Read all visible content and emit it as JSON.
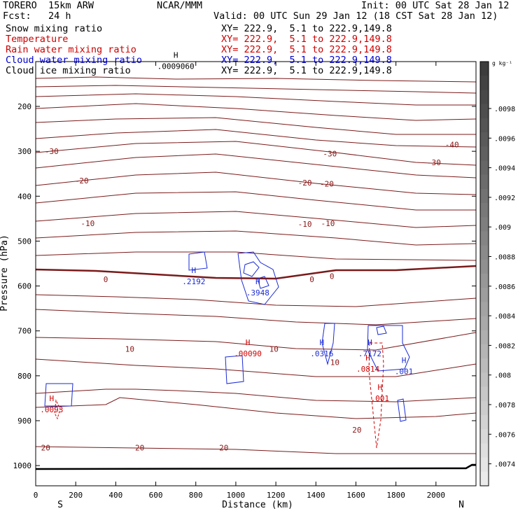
{
  "header": {
    "title": "TORERO  15km ARW",
    "forecast": "Fcst:   24 h",
    "source": "NCAR/MMM",
    "init": "Init: 00 UTC Sat 28 Jan 12",
    "valid": "Valid: 00 UTC Sun 29 Jan 12 (18 CST Sat 28 Jan 12)"
  },
  "fields": [
    {
      "label": "Snow mixing ratio",
      "xy": "XY= 222.9,  5.1 to 222.9,149.8",
      "color": "#000000"
    },
    {
      "label": "Temperature",
      "xy": "XY= 222.9,  5.1 to 222.9,149.8",
      "color": "#cc0000"
    },
    {
      "label": "Rain water mixing ratio",
      "xy": "XY= 222.9,  5.1 to 222.9,149.8",
      "color": "#cc0000"
    },
    {
      "label": "Cloud water mixing ratio",
      "xy": "XY= 222.9,  5.1 to 222.9,149.8",
      "color": "#0000cc"
    },
    {
      "label": "Cloud ice mixing ratio",
      "xy": "XY= 222.9,  5.1 to 222.9,149.8",
      "color": "#000000"
    }
  ],
  "chart_data": {
    "type": "contour",
    "xlabel": "Distance (km)",
    "ylabel": "Pressure (hPa)",
    "xlim": [
      0,
      2200
    ],
    "ylim": [
      1050,
      100
    ],
    "x_ticks": [
      "0",
      "200",
      "400",
      "600",
      "800",
      "1000",
      "1200",
      "1400",
      "1600",
      "1800",
      "2000"
    ],
    "y_ticks": [
      "200",
      "300",
      "400",
      "500",
      "600",
      "700",
      "800",
      "900",
      "1000"
    ],
    "end_labels": {
      "left": "S",
      "right": "N"
    },
    "colorbar": {
      "unit": "g kg⁻¹",
      "ticks": [
        ".0098",
        ".0096",
        ".0094",
        ".0092",
        ".009",
        ".0088",
        ".0086",
        ".0084",
        ".0082",
        ".008",
        ".0078",
        ".0076",
        ".0074"
      ]
    },
    "temperature_labels": [
      {
        "text": "-30",
        "x": 80,
        "p": 300
      },
      {
        "text": "-30",
        "x": 1470,
        "p": 305
      },
      {
        "text": "-40",
        "x": 2080,
        "p": 285
      },
      {
        "text": "-30",
        "x": 1990,
        "p": 325
      },
      {
        "text": "-20",
        "x": 230,
        "p": 365
      },
      {
        "text": "-20",
        "x": 1345,
        "p": 370
      },
      {
        "text": "-20",
        "x": 1455,
        "p": 372
      },
      {
        "text": "-10",
        "x": 260,
        "p": 460
      },
      {
        "text": "-10",
        "x": 1345,
        "p": 462
      },
      {
        "text": "-10",
        "x": 1460,
        "p": 460
      },
      {
        "text": "0",
        "x": 350,
        "p": 585
      },
      {
        "text": "0",
        "x": 1380,
        "p": 585
      },
      {
        "text": "0",
        "x": 1480,
        "p": 578
      },
      {
        "text": "10",
        "x": 470,
        "p": 740
      },
      {
        "text": "10",
        "x": 1190,
        "p": 740
      },
      {
        "text": "10",
        "x": 1495,
        "p": 770
      },
      {
        "text": "20",
        "x": 50,
        "p": 960
      },
      {
        "text": "20",
        "x": 520,
        "p": 960
      },
      {
        "text": "20",
        "x": 940,
        "p": 960
      },
      {
        "text": "20",
        "x": 1605,
        "p": 920
      }
    ],
    "cloud_water_maxima": [
      {
        "text": ".2192",
        "x": 790,
        "p": 590
      },
      {
        "text": ".3948",
        "x": 1110,
        "p": 615
      },
      {
        "text": ".0316",
        "x": 1430,
        "p": 750
      },
      {
        "text": ".7172",
        "x": 1670,
        "p": 750
      },
      {
        "text": ".001",
        "x": 1840,
        "p": 790
      }
    ],
    "rain_water_maxima": [
      {
        "text": ".00090",
        "x": 1060,
        "p": 750
      },
      {
        "text": ".0814",
        "x": 1660,
        "p": 785
      },
      {
        "text": ".001",
        "x": 1720,
        "p": 850
      },
      {
        "text": ".0093",
        "x": 80,
        "p": 875
      }
    ],
    "snow_maxima": [
      {
        "text": ".0009060",
        "x": 700,
        "p": 110
      }
    ]
  }
}
